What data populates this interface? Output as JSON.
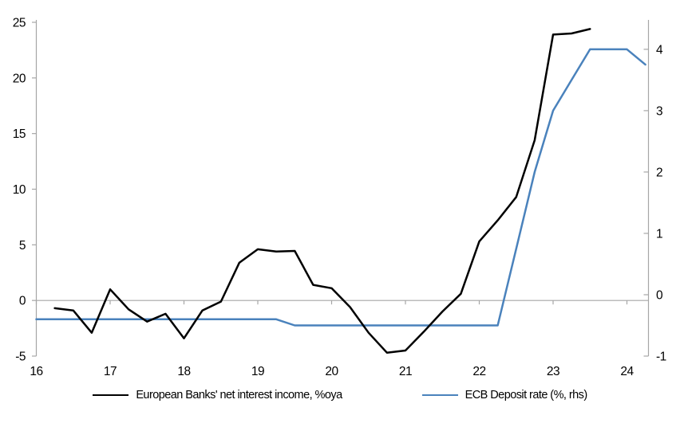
{
  "chart_data": {
    "type": "line",
    "title": "",
    "xlabel": "",
    "ylabel_left": "",
    "ylabel_right": "",
    "grid": "zero-line-only",
    "legend_position": "bottom",
    "x_axis": {
      "ticks": [
        "16",
        "17",
        "18",
        "19",
        "20",
        "21",
        "22",
        "23",
        "24"
      ],
      "tick_values": [
        16,
        17,
        18,
        19,
        20,
        21,
        22,
        23,
        24
      ],
      "min": 16,
      "max": 24.29
    },
    "left_axis": {
      "tick_labels": [
        "25",
        "20",
        "15",
        "10",
        "5",
        "0",
        "-5"
      ],
      "tick_values": [
        25,
        20,
        15,
        10,
        5,
        0,
        -5
      ],
      "min": -5,
      "max": 25
    },
    "right_axis": {
      "tick_labels": [
        "4",
        "3",
        "2",
        "1",
        "0",
        "-1"
      ],
      "tick_values": [
        4,
        3,
        2,
        1,
        0,
        -1
      ],
      "min": -1,
      "max": 4.44
    },
    "series": [
      {
        "name": "European Banks' net interest income, %oya",
        "axis": "left",
        "color": "#000000",
        "x": [
          16.25,
          16.5,
          16.75,
          17,
          17.25,
          17.5,
          17.75,
          18,
          18.25,
          18.5,
          18.75,
          19,
          19.25,
          19.5,
          19.75,
          20,
          20.25,
          20.5,
          20.75,
          21,
          21.25,
          21.5,
          21.75,
          22,
          22.25,
          22.5,
          22.75,
          23,
          23.25,
          23.5
        ],
        "values": [
          -0.7,
          -0.9,
          -2.9,
          1.0,
          -0.8,
          -1.9,
          -1.2,
          -3.4,
          -0.9,
          -0.1,
          3.4,
          4.6,
          4.4,
          4.45,
          1.4,
          1.1,
          -0.6,
          -2.9,
          -4.7,
          -4.5,
          -2.8,
          -1.0,
          0.6,
          5.3,
          7.2,
          9.3,
          14.4,
          23.9,
          24.0,
          24.4
        ]
      },
      {
        "name": "ECB Deposit rate (%, rhs)",
        "axis": "right",
        "color": "#4a82bc",
        "x": [
          16,
          16.25,
          16.5,
          16.75,
          17,
          17.25,
          17.5,
          17.75,
          18,
          18.25,
          18.5,
          18.75,
          19,
          19.25,
          19.5,
          19.75,
          20,
          20.25,
          20.5,
          20.75,
          21,
          21.25,
          21.5,
          21.75,
          22,
          22.25,
          22.5,
          22.75,
          23,
          23.25,
          23.5,
          23.75,
          24,
          24.25
        ],
        "values": [
          -0.4,
          -0.4,
          -0.4,
          -0.4,
          -0.4,
          -0.4,
          -0.4,
          -0.4,
          -0.4,
          -0.4,
          -0.4,
          -0.4,
          -0.4,
          -0.4,
          -0.5,
          -0.5,
          -0.5,
          -0.5,
          -0.5,
          -0.5,
          -0.5,
          -0.5,
          -0.5,
          -0.5,
          -0.5,
          -0.5,
          0.75,
          2.0,
          3.0,
          3.5,
          4.0,
          4.0,
          4.0,
          3.75
        ]
      }
    ]
  },
  "colors": {
    "axis": "#a6a6a6",
    "background": "#ffffff",
    "text": "#000000",
    "accent_blue": "#4a82bc"
  }
}
